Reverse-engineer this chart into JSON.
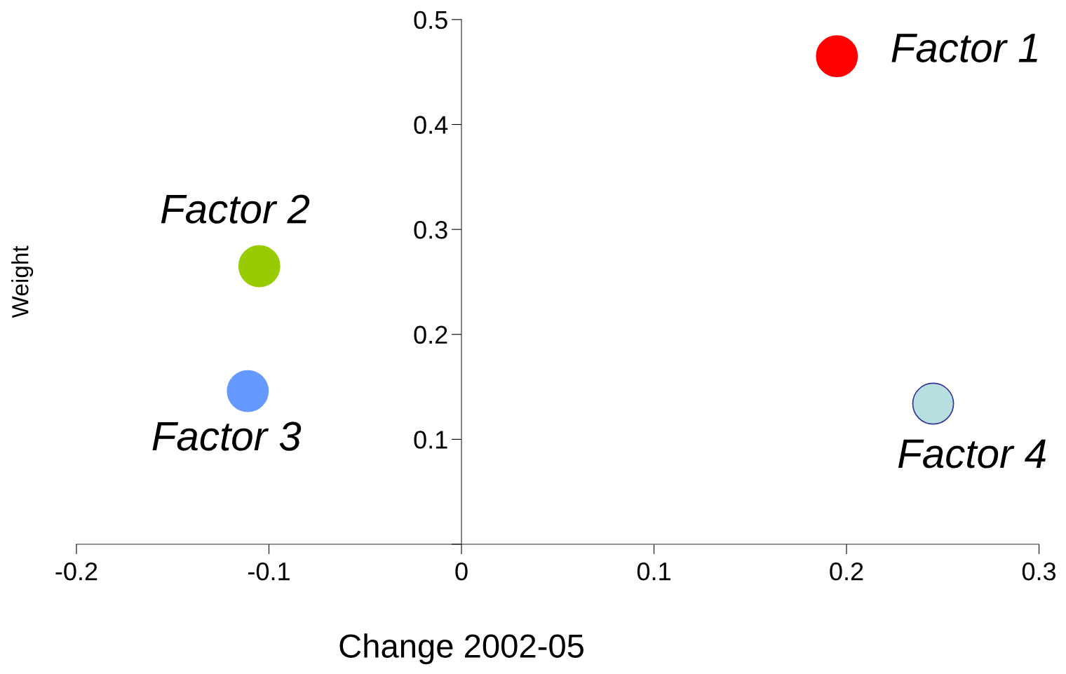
{
  "chart_data": {
    "type": "scatter",
    "xlabel": "Change 2002-05",
    "ylabel": "Weight",
    "xlim": [
      -0.2,
      0.3
    ],
    "xticks": [
      -0.2,
      -0.1,
      0,
      0.1,
      0.2,
      0.3
    ],
    "ylim": [
      0,
      0.5
    ],
    "yticks": [
      {
        "value": 0,
        "label": null
      },
      0.1,
      0.2,
      0.3,
      0.4,
      0.5
    ],
    "grid": false,
    "marker": "circle",
    "series": [
      {
        "name": "Factor 1",
        "color": "#ff0000",
        "x": [
          0.195
        ],
        "values": [
          0.465
        ]
      },
      {
        "name": "Factor 2",
        "color": "#99cc00",
        "x": [
          -0.105
        ],
        "values": [
          0.265
        ]
      },
      {
        "name": "Factor 3",
        "color": "#6699ff",
        "x": [
          -0.111
        ],
        "values": [
          0.146
        ]
      },
      {
        "name": "Factor 4",
        "color": "#b7dfe0",
        "x": [
          0.245
        ],
        "values": [
          0.134
        ]
      }
    ]
  }
}
